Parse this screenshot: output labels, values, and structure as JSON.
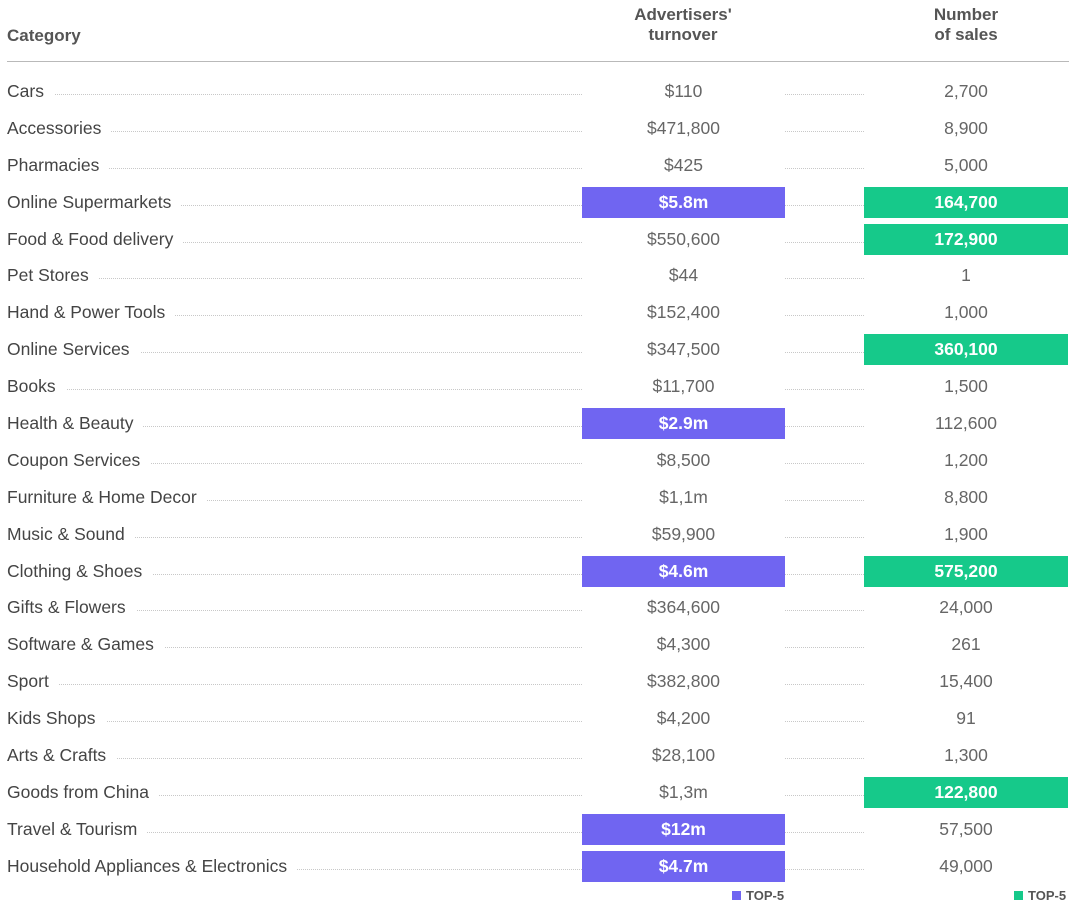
{
  "chart_data": {
    "type": "table",
    "columns": [
      "Category",
      "Advertisers' turnover",
      "Number of sales"
    ],
    "header": {
      "category": "Category",
      "turnover_line1": "Advertisers'",
      "turnover_line2": "turnover",
      "sales_line1": "Number",
      "sales_line2": "of sales"
    },
    "rows": [
      {
        "category": "Cars",
        "turnover": "$110",
        "sales": "2,700",
        "turnover_top5": false,
        "sales_top5": false
      },
      {
        "category": "Accessories",
        "turnover": "$471,800",
        "sales": "8,900",
        "turnover_top5": false,
        "sales_top5": false
      },
      {
        "category": "Pharmacies",
        "turnover": "$425",
        "sales": "5,000",
        "turnover_top5": false,
        "sales_top5": false
      },
      {
        "category": "Online Supermarkets",
        "turnover": "$5.8m",
        "sales": "164,700",
        "turnover_top5": true,
        "sales_top5": true
      },
      {
        "category": "Food & Food delivery",
        "turnover": "$550,600",
        "sales": "172,900",
        "turnover_top5": false,
        "sales_top5": true
      },
      {
        "category": "Pet Stores",
        "turnover": "$44",
        "sales": "1",
        "turnover_top5": false,
        "sales_top5": false
      },
      {
        "category": "Hand & Power Tools",
        "turnover": "$152,400",
        "sales": "1,000",
        "turnover_top5": false,
        "sales_top5": false
      },
      {
        "category": "Online Services",
        "turnover": "$347,500",
        "sales": "360,100",
        "turnover_top5": false,
        "sales_top5": true
      },
      {
        "category": "Books",
        "turnover": "$11,700",
        "sales": "1,500",
        "turnover_top5": false,
        "sales_top5": false
      },
      {
        "category": "Health & Beauty",
        "turnover": "$2.9m",
        "sales": "112,600",
        "turnover_top5": true,
        "sales_top5": false
      },
      {
        "category": "Coupon Services",
        "turnover": "$8,500",
        "sales": "1,200",
        "turnover_top5": false,
        "sales_top5": false
      },
      {
        "category": "Furniture & Home Decor",
        "turnover": "$1,1m",
        "sales": "8,800",
        "turnover_top5": false,
        "sales_top5": false
      },
      {
        "category": "Music & Sound",
        "turnover": "$59,900",
        "sales": "1,900",
        "turnover_top5": false,
        "sales_top5": false
      },
      {
        "category": "Clothing & Shoes",
        "turnover": "$4.6m",
        "sales": "575,200",
        "turnover_top5": true,
        "sales_top5": true
      },
      {
        "category": "Gifts & Flowers",
        "turnover": "$364,600",
        "sales": "24,000",
        "turnover_top5": false,
        "sales_top5": false
      },
      {
        "category": "Software & Games",
        "turnover": "$4,300",
        "sales": "261",
        "turnover_top5": false,
        "sales_top5": false
      },
      {
        "category": "Sport",
        "turnover": "$382,800",
        "sales": "15,400",
        "turnover_top5": false,
        "sales_top5": false
      },
      {
        "category": "Kids Shops",
        "turnover": "$4,200",
        "sales": "91",
        "turnover_top5": false,
        "sales_top5": false
      },
      {
        "category": "Arts & Crafts",
        "turnover": "$28,100",
        "sales": "1,300",
        "turnover_top5": false,
        "sales_top5": false
      },
      {
        "category": "Goods from China",
        "turnover": "$1,3m",
        "sales": "122,800",
        "turnover_top5": false,
        "sales_top5": true
      },
      {
        "category": "Travel & Tourism",
        "turnover": "$12m",
        "sales": "57,500",
        "turnover_top5": true,
        "sales_top5": false
      },
      {
        "category": "Household Appliances & Electronics",
        "turnover": "$4.7m",
        "sales": "49,000",
        "turnover_top5": true,
        "sales_top5": false
      }
    ],
    "legend": [
      {
        "label": "TOP-5",
        "color": "#7065f1"
      },
      {
        "label": "TOP-5",
        "color": "#16c98a"
      }
    ],
    "legend_placement": "bottom-right"
  }
}
